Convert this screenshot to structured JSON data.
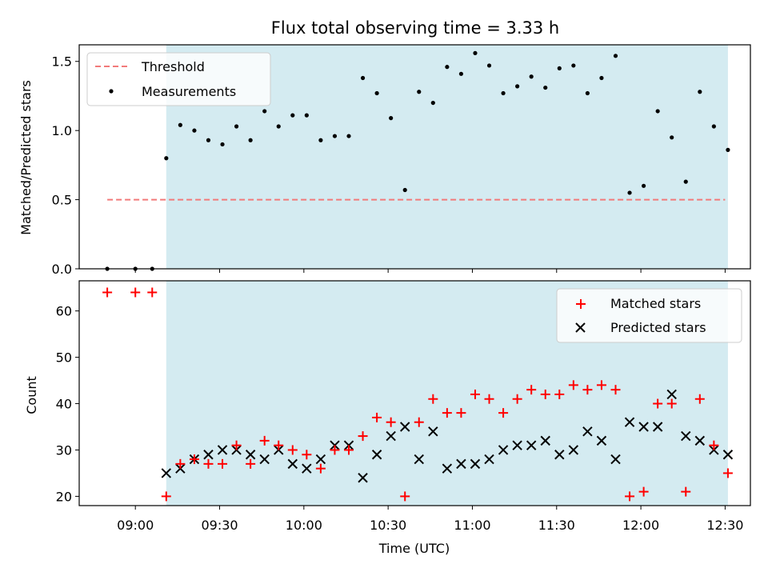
{
  "chart_data": [
    {
      "type": "scatter",
      "title": "Flux total observing time = 3.33 h",
      "xlabel": "",
      "ylabel": "Matched/Predicted stars",
      "ylim": [
        0,
        1.62
      ],
      "yticks": [
        "0.0",
        "0.5",
        "1.0",
        "1.5"
      ],
      "shaded_interval": [
        "09:11",
        "12:31"
      ],
      "shade_color": "#d4ebf1",
      "legend_position": "upper left",
      "threshold": {
        "name": "Threshold",
        "value": 0.5,
        "x_range": [
          "08:50",
          "12:30"
        ],
        "color": "#f27a7a"
      },
      "series": [
        {
          "name": "Measurements",
          "color": "#000000",
          "x": [
            "08:50",
            "09:00",
            "09:06",
            "09:11",
            "09:16",
            "09:21",
            "09:26",
            "09:31",
            "09:36",
            "09:41",
            "09:46",
            "09:51",
            "09:56",
            "10:01",
            "10:06",
            "10:11",
            "10:16",
            "10:21",
            "10:26",
            "10:31",
            "10:36",
            "10:41",
            "10:46",
            "10:51",
            "10:56",
            "11:01",
            "11:06",
            "11:11",
            "11:16",
            "11:21",
            "11:26",
            "11:31",
            "11:36",
            "11:41",
            "11:46",
            "11:51",
            "11:56",
            "12:01",
            "12:06",
            "12:11",
            "12:16",
            "12:21",
            "12:26",
            "12:31"
          ],
          "y": [
            0,
            0,
            0,
            0.8,
            1.04,
            1.0,
            0.93,
            0.9,
            1.03,
            0.93,
            1.14,
            1.03,
            1.11,
            1.11,
            0.93,
            0.96,
            0.96,
            1.38,
            1.27,
            1.09,
            0.57,
            1.28,
            1.2,
            1.46,
            1.41,
            1.56,
            1.47,
            1.27,
            1.32,
            1.39,
            1.31,
            1.45,
            1.47,
            1.27,
            1.38,
            1.54,
            0.55,
            0.6,
            1.14,
            0.95,
            0.63,
            1.28,
            1.03,
            0.86
          ]
        }
      ]
    },
    {
      "type": "scatter",
      "title": "",
      "xlabel": "Time (UTC)",
      "ylabel": "Count",
      "ylim": [
        18,
        66.5
      ],
      "xlim": [
        "08:40",
        "12:39"
      ],
      "xticks": [
        "09:00",
        "09:30",
        "10:00",
        "10:30",
        "11:00",
        "11:30",
        "12:00",
        "12:30"
      ],
      "yticks": [
        "20",
        "30",
        "40",
        "50",
        "60"
      ],
      "shaded_interval": [
        "09:11",
        "12:31"
      ],
      "legend_position": "upper right",
      "x": [
        "08:50",
        "09:00",
        "09:06",
        "09:11",
        "09:16",
        "09:21",
        "09:26",
        "09:31",
        "09:36",
        "09:41",
        "09:46",
        "09:51",
        "09:56",
        "10:01",
        "10:06",
        "10:11",
        "10:16",
        "10:21",
        "10:26",
        "10:31",
        "10:36",
        "10:41",
        "10:46",
        "10:51",
        "10:56",
        "11:01",
        "11:06",
        "11:11",
        "11:16",
        "11:21",
        "11:26",
        "11:31",
        "11:36",
        "11:41",
        "11:46",
        "11:51",
        "11:56",
        "12:01",
        "12:06",
        "12:11",
        "12:16",
        "12:21",
        "12:26",
        "12:31"
      ],
      "series": [
        {
          "name": "Matched stars",
          "color": "#ff0000",
          "marker": "+",
          "values": [
            64,
            64,
            64,
            20,
            27,
            28,
            27,
            27,
            31,
            27,
            32,
            31,
            30,
            29,
            26,
            30,
            30,
            33,
            37,
            36,
            20,
            36,
            41,
            38,
            38,
            42,
            41,
            38,
            41,
            43,
            42,
            42,
            44,
            43,
            44,
            43,
            20,
            21,
            40,
            40,
            21,
            41,
            31,
            25
          ]
        },
        {
          "name": "Predicted stars",
          "color": "#000000",
          "marker": "x",
          "values": [
            null,
            null,
            null,
            25,
            26,
            28,
            29,
            30,
            30,
            29,
            28,
            30,
            27,
            26,
            28,
            31,
            31,
            24,
            29,
            33,
            35,
            28,
            34,
            26,
            27,
            27,
            28,
            30,
            31,
            31,
            32,
            29,
            30,
            34,
            32,
            28,
            36,
            35,
            35,
            42,
            33,
            32,
            30,
            29
          ]
        }
      ]
    }
  ]
}
